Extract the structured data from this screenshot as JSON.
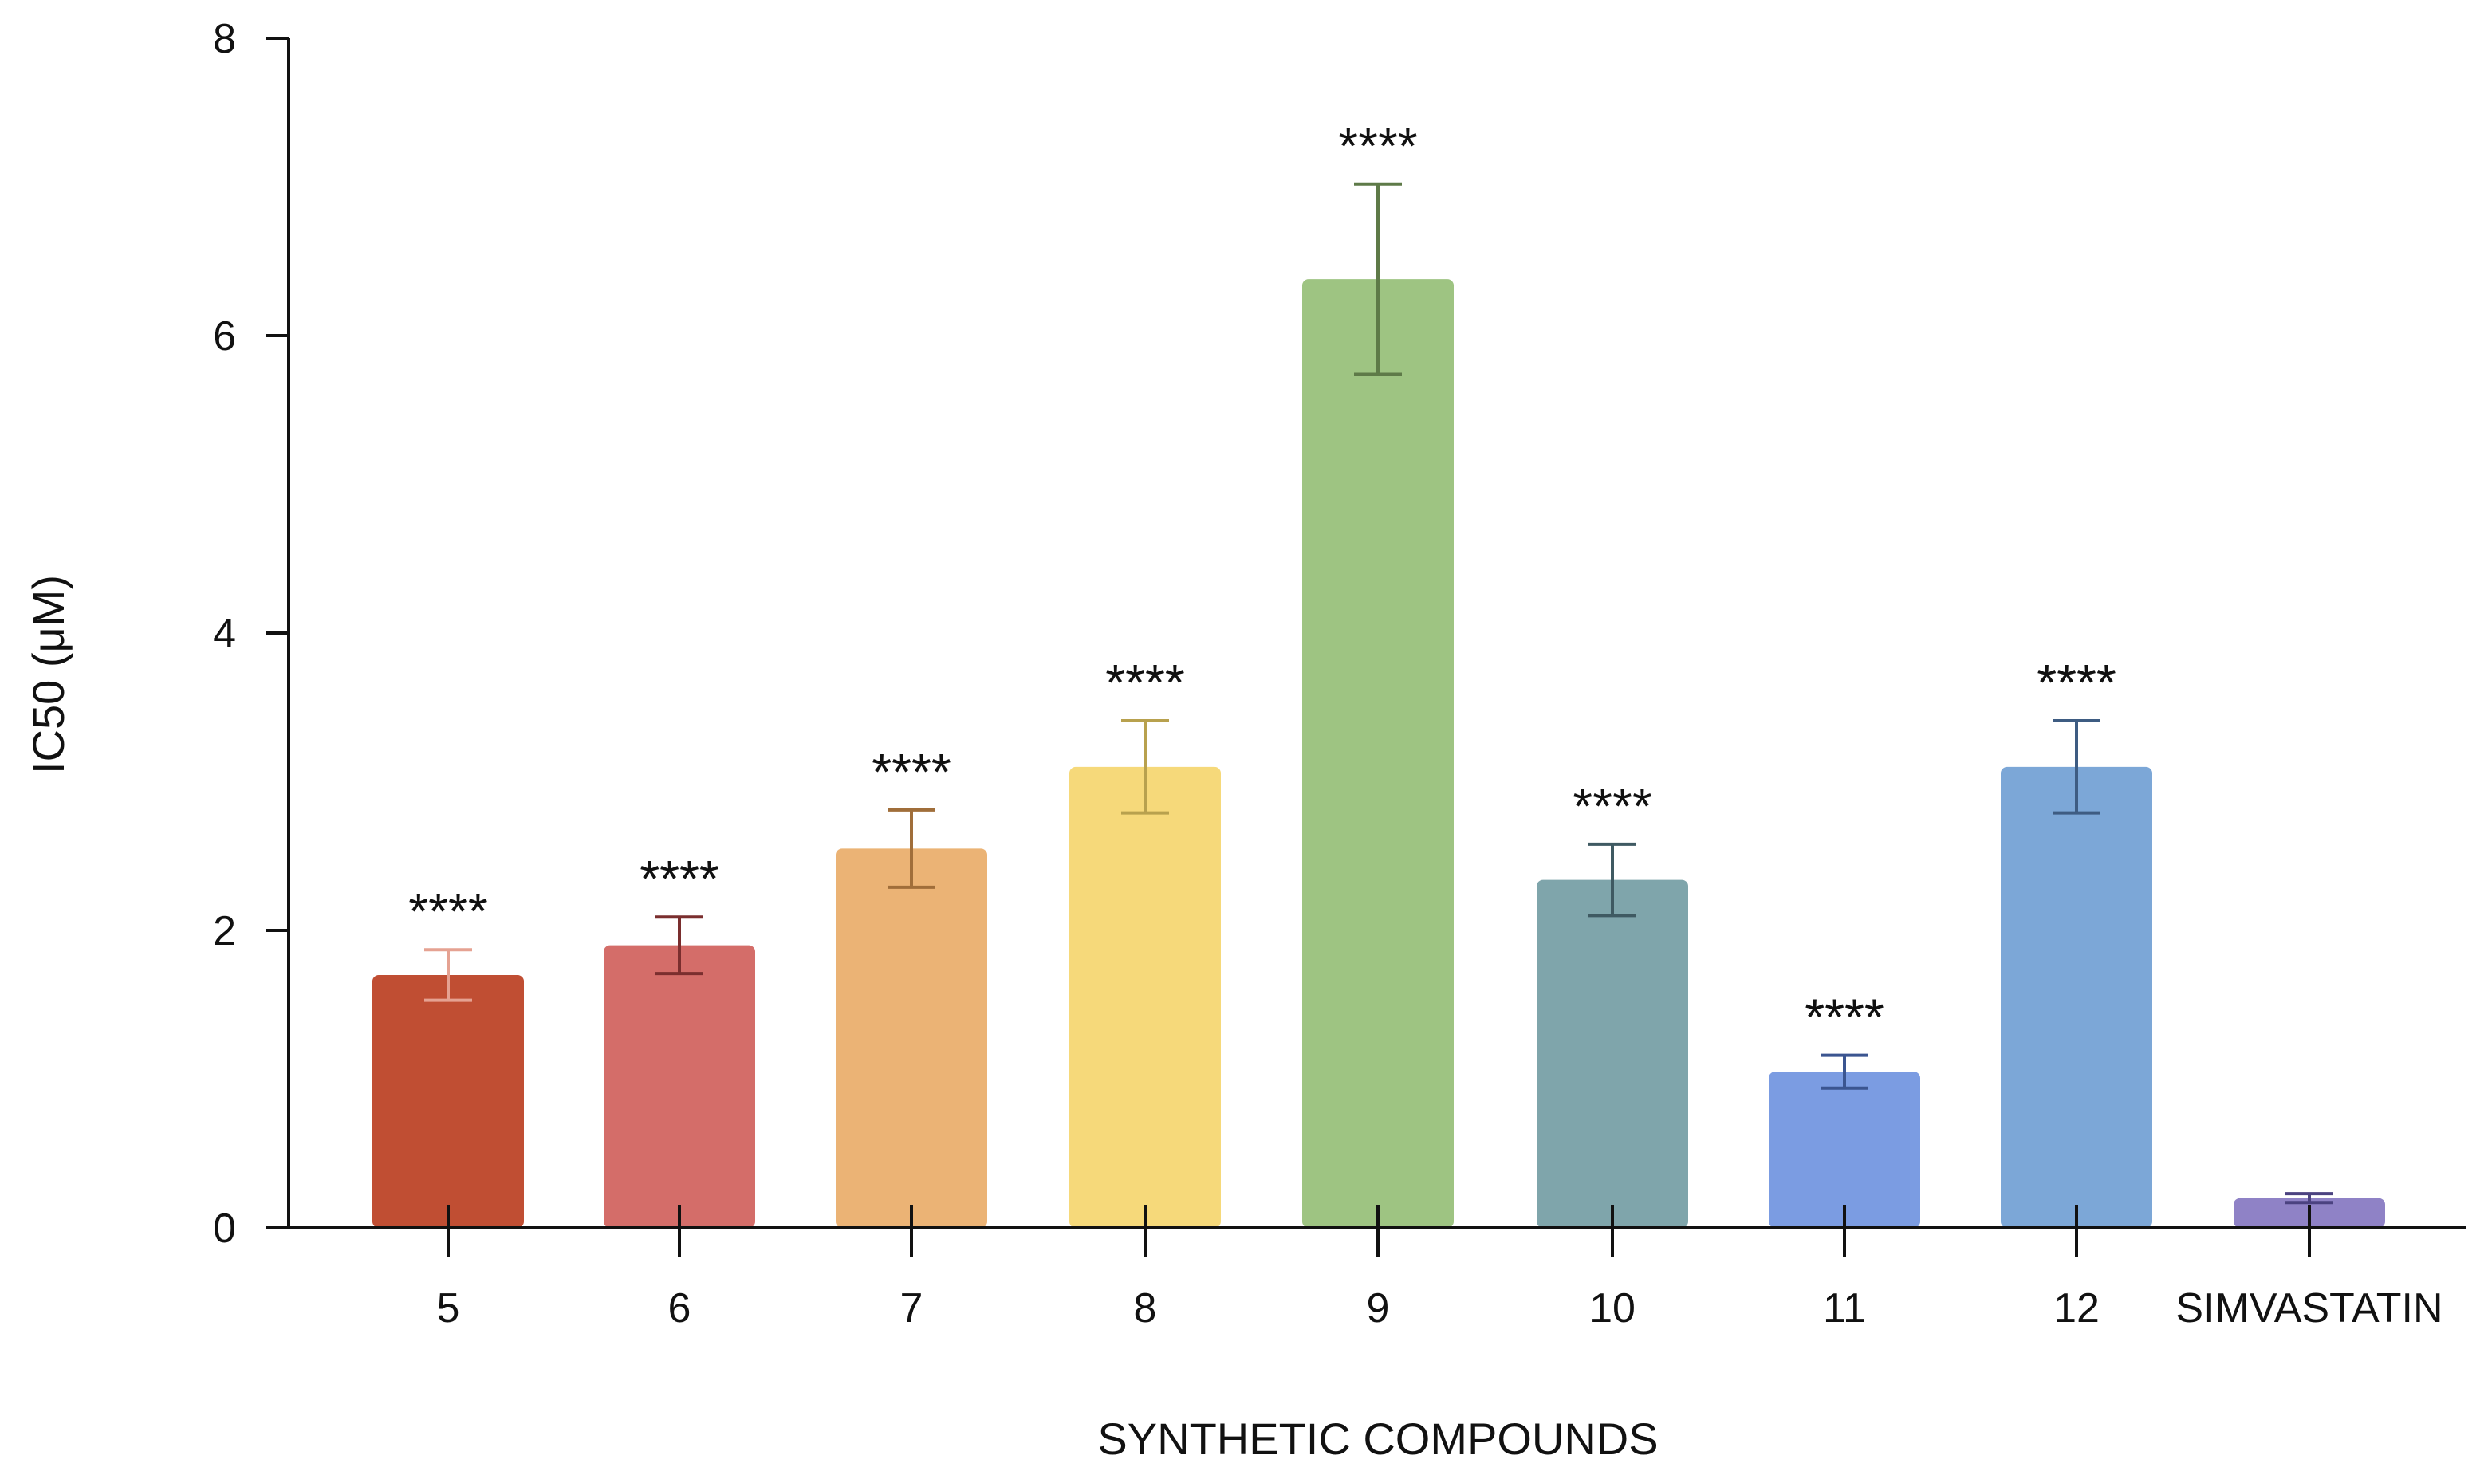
{
  "chart_data": {
    "type": "bar",
    "title": "",
    "xlabel": "SYNTHETIC COMPOUNDS",
    "ylabel": "IC50 (μM)",
    "ylim": [
      0,
      8
    ],
    "yticks": [
      "0",
      "2",
      "4",
      "6",
      "8"
    ],
    "categories": [
      "5",
      "6",
      "7",
      "8",
      "9",
      "10",
      "11",
      "12",
      "SIMVASTATIN"
    ],
    "values": [
      1.7,
      1.9,
      2.55,
      3.1,
      6.38,
      2.34,
      1.05,
      3.1,
      0.2
    ],
    "errors": [
      0.17,
      0.19,
      0.26,
      0.31,
      0.64,
      0.24,
      0.11,
      0.31,
      0.03
    ],
    "significance": [
      "****",
      "****",
      "****",
      "****",
      "****",
      "****",
      "****",
      "****",
      ""
    ],
    "colors": [
      "#C04E33",
      "#D46D69",
      "#EBB375",
      "#F6D97A",
      "#9EC482",
      "#7FA5AB",
      "#7B9CE2",
      "#7CA7D7",
      "#8F82C6"
    ],
    "error_colors": [
      "#E5A292",
      "#7A2E2E",
      "#A06E3A",
      "#B8A14E",
      "#5E7A48",
      "#3F5A62",
      "#3B5590",
      "#3E5C82",
      "#4B4280"
    ],
    "grid": false,
    "legend": "none"
  }
}
